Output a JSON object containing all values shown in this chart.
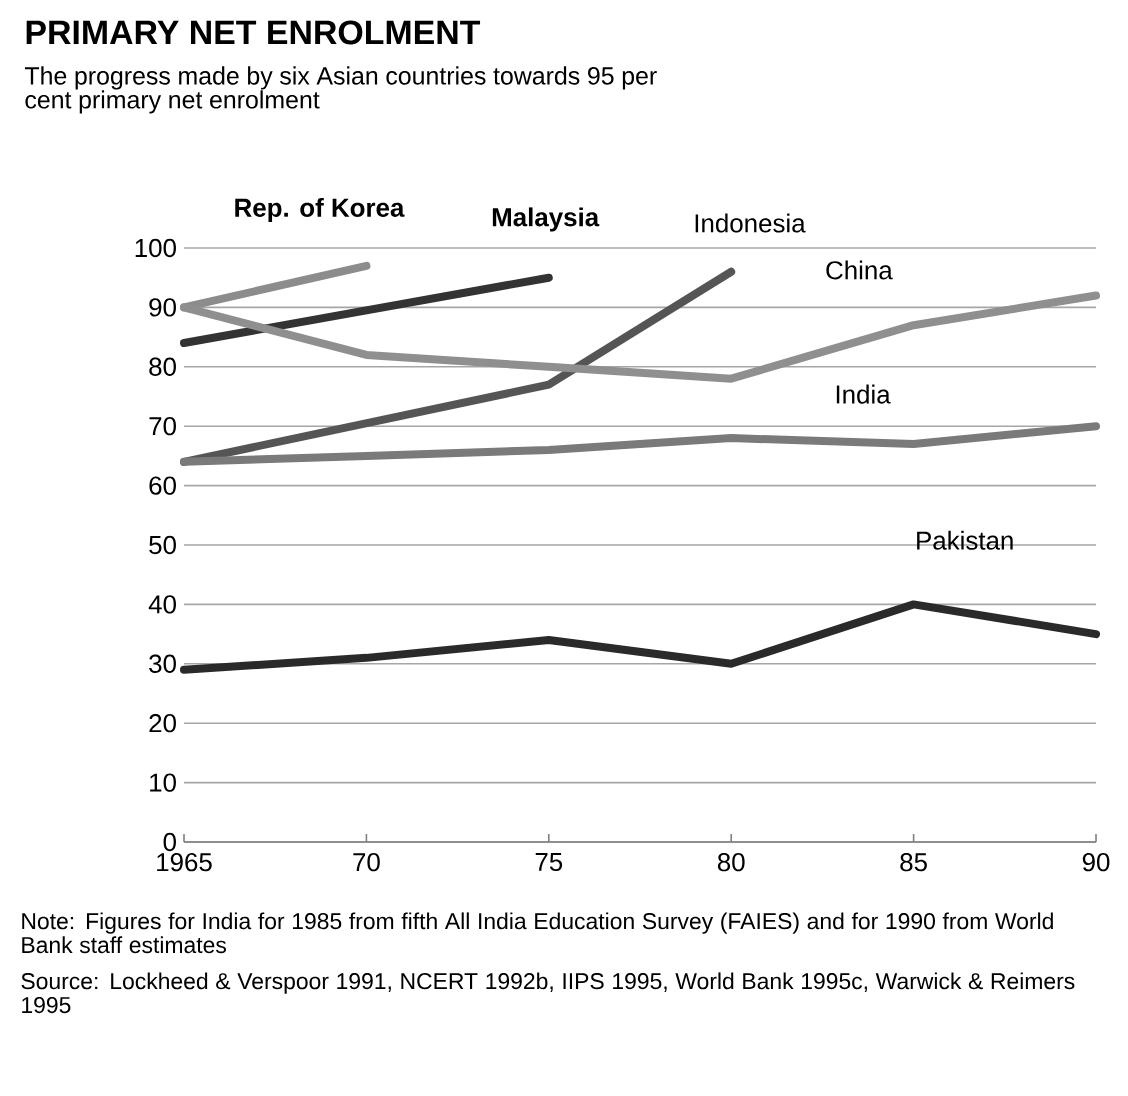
{
  "chart_data": {
    "type": "line",
    "title": "PRIMARY NET ENROLMENT",
    "subtitle": "The progress made by six Asian countries towards 95 per cent primary net enrolment",
    "x": [
      1965,
      1970,
      1975,
      1980,
      1985,
      1990
    ],
    "series": [
      {
        "name": "Rep. of Korea",
        "color": "#8c8c8c",
        "x": [
          1965,
          1970
        ],
        "values": [
          90,
          97
        ]
      },
      {
        "name": "Malaysia",
        "color": "#333333",
        "x": [
          1965,
          1975
        ],
        "values": [
          84,
          95
        ]
      },
      {
        "name": "Indonesia",
        "color": "#555555",
        "x": [
          1965,
          1975,
          1980
        ],
        "values": [
          64,
          77,
          96
        ]
      },
      {
        "name": "China",
        "color": "#8f8f8f",
        "values": [
          90,
          82,
          80,
          78,
          87,
          92
        ]
      },
      {
        "name": "India",
        "color": "#7a7a7a",
        "values": [
          64,
          65,
          66,
          68,
          67,
          70
        ]
      },
      {
        "name": "Pakistan",
        "color": "#2a2a2a",
        "values": [
          29,
          31,
          34,
          30,
          40,
          35
        ]
      }
    ],
    "xlim": [
      1965,
      1990
    ],
    "xticks": [
      {
        "value": 1965,
        "label": "1965"
      },
      {
        "value": 1970,
        "label": "70"
      },
      {
        "value": 1975,
        "label": "75"
      },
      {
        "value": 1980,
        "label": "80"
      },
      {
        "value": 1985,
        "label": "85"
      },
      {
        "value": 1990,
        "label": "90"
      }
    ],
    "ylim": [
      0,
      100
    ],
    "yticks": [
      0,
      10,
      20,
      30,
      40,
      50,
      60,
      70,
      80,
      90,
      100
    ],
    "grid": "y",
    "marker": "none",
    "line_style": "solid",
    "annotations": [
      "Note: Figures for India for 1985 from fifth All India Education Survey (FAIES) and for 1990 from World Bank staff estimates",
      "Source: Lockheed & Verspoor 1991, NCERT 1992b, IIPS 1995, World Bank 1995c, Warwick & Reimers 1995"
    ]
  }
}
